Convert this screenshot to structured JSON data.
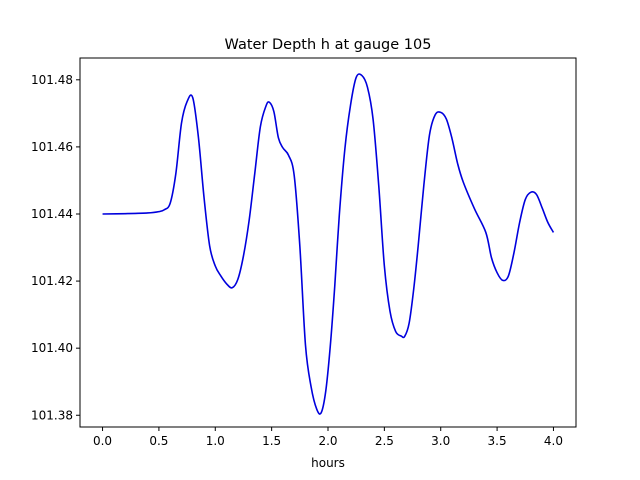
{
  "chart_data": {
    "type": "line",
    "title": "Water Depth h at gauge 105",
    "xlabel": "hours",
    "ylabel": "",
    "xlim": [
      -0.2,
      4.2
    ],
    "ylim": [
      101.3765,
      101.4865
    ],
    "xticks": [
      0.0,
      0.5,
      1.0,
      1.5,
      2.0,
      2.5,
      3.0,
      3.5,
      4.0
    ],
    "xtick_labels": [
      "0.0",
      "0.5",
      "1.0",
      "1.5",
      "2.0",
      "2.5",
      "3.0",
      "3.5",
      "4.0"
    ],
    "yticks": [
      101.38,
      101.4,
      101.42,
      101.44,
      101.46,
      101.48
    ],
    "ytick_labels": [
      "101.38",
      "101.40",
      "101.42",
      "101.44",
      "101.46",
      "101.48"
    ],
    "grid": false,
    "series": [
      {
        "color": "#0000dd",
        "x": [
          0.0,
          0.2,
          0.4,
          0.5,
          0.55,
          0.6,
          0.65,
          0.7,
          0.75,
          0.8,
          0.85,
          0.9,
          0.95,
          1.0,
          1.05,
          1.1,
          1.15,
          1.2,
          1.25,
          1.3,
          1.35,
          1.4,
          1.45,
          1.48,
          1.52,
          1.56,
          1.6,
          1.65,
          1.7,
          1.75,
          1.8,
          1.85,
          1.9,
          1.94,
          1.98,
          2.02,
          2.06,
          2.1,
          2.15,
          2.2,
          2.25,
          2.3,
          2.35,
          2.4,
          2.45,
          2.5,
          2.55,
          2.6,
          2.65,
          2.68,
          2.72,
          2.76,
          2.8,
          2.85,
          2.9,
          2.95,
          3.0,
          3.05,
          3.1,
          3.15,
          3.2,
          3.3,
          3.4,
          3.45,
          3.5,
          3.55,
          3.6,
          3.65,
          3.7,
          3.75,
          3.8,
          3.85,
          3.9,
          3.95,
          4.0
        ],
        "y": [
          101.44,
          101.4401,
          101.4403,
          101.4407,
          101.4413,
          101.4432,
          101.452,
          101.467,
          101.4735,
          101.4747,
          101.463,
          101.445,
          101.4305,
          101.4245,
          101.4215,
          101.4192,
          101.418,
          101.4205,
          101.4275,
          101.438,
          101.452,
          101.466,
          101.4722,
          101.4733,
          101.4705,
          101.4627,
          101.4597,
          101.4575,
          101.4515,
          101.4305,
          101.401,
          101.3885,
          101.3818,
          101.3808,
          101.3872,
          101.4005,
          101.4185,
          101.4395,
          101.4595,
          101.4725,
          101.4807,
          101.4813,
          101.4778,
          101.4682,
          101.4485,
          101.4245,
          101.411,
          101.405,
          101.4036,
          101.4035,
          101.4075,
          101.4175,
          101.4305,
          101.4485,
          101.4635,
          101.4695,
          101.4703,
          101.4683,
          101.4625,
          101.455,
          101.4495,
          101.4415,
          101.4345,
          101.427,
          101.4225,
          101.4202,
          101.4215,
          101.4285,
          101.4375,
          101.4443,
          101.4465,
          101.4458,
          101.4418,
          101.4375,
          101.4345
        ]
      }
    ]
  }
}
